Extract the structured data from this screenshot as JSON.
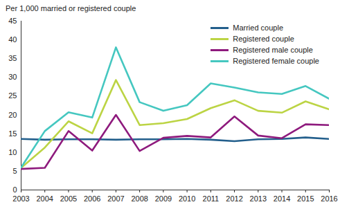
{
  "chart_data": {
    "type": "line",
    "subtitle": "Per 1,000 married or registered couple",
    "x": [
      2003,
      2004,
      2005,
      2006,
      2007,
      2008,
      2009,
      2010,
      2011,
      2012,
      2013,
      2014,
      2015,
      2016
    ],
    "xlim": [
      2003,
      2016
    ],
    "xticks": [
      2003,
      2004,
      2005,
      2006,
      2007,
      2008,
      2009,
      2010,
      2011,
      2012,
      2013,
      2014,
      2015,
      2016
    ],
    "ylim": [
      0,
      45
    ],
    "yticks": [
      0,
      5,
      10,
      15,
      20,
      25,
      30,
      35,
      40,
      45
    ],
    "grid": false,
    "legend": "top-right",
    "series": [
      {
        "name": "Married couple",
        "color": "#235f8c",
        "values": [
          13.6,
          13.4,
          13.5,
          13.5,
          13.4,
          13.5,
          13.5,
          13.6,
          13.4,
          13.0,
          13.5,
          13.6,
          14.0,
          13.6
        ]
      },
      {
        "name": "Registered couple",
        "color": "#bcd444",
        "values": [
          5.9,
          11.3,
          18.3,
          15.1,
          29.3,
          17.3,
          17.8,
          18.9,
          21.8,
          23.9,
          21.1,
          20.6,
          23.6,
          21.5
        ]
      },
      {
        "name": "Registered male couple",
        "color": "#8e1a7d",
        "values": [
          5.6,
          5.9,
          15.7,
          10.5,
          20.0,
          10.4,
          13.9,
          14.4,
          14.0,
          19.6,
          14.5,
          13.8,
          17.5,
          17.3
        ]
      },
      {
        "name": "Registered female couple",
        "color": "#45c7c0",
        "values": [
          6.0,
          15.7,
          20.7,
          19.3,
          38.0,
          23.4,
          21.1,
          22.6,
          28.4,
          27.3,
          26.0,
          25.6,
          27.7,
          24.3
        ]
      }
    ]
  }
}
